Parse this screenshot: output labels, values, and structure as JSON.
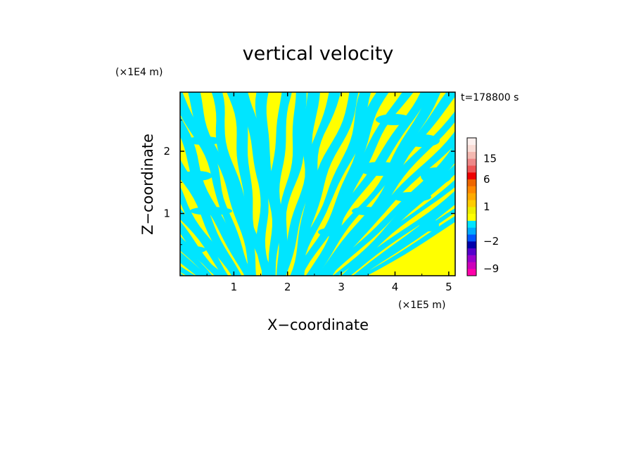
{
  "chart_data": {
    "type": "heatmap",
    "title": "vertical velocity",
    "xlabel": "X−coordinate",
    "ylabel": "Z−coordinate",
    "x_unit": "(×1E5 m)",
    "y_unit": "(×1E4 m)",
    "time_label": "t=178800 s",
    "x_range": [
      0,
      5.12
    ],
    "y_range": [
      0,
      2.95
    ],
    "x_ticks": [
      {
        "value": 1,
        "label": "1"
      },
      {
        "value": 2,
        "label": "2"
      },
      {
        "value": 3,
        "label": "3"
      },
      {
        "value": 4,
        "label": "4"
      },
      {
        "value": 5,
        "label": "5"
      }
    ],
    "y_ticks": [
      {
        "value": 1,
        "label": "1"
      },
      {
        "value": 2,
        "label": "2"
      }
    ],
    "field_colors": {
      "positive": "#ffff00",
      "negative": "#00e5ff"
    },
    "colorbar": {
      "levels": [
        {
          "from": -12,
          "to": -9,
          "color": "#ff00aa"
        },
        {
          "from": -9,
          "to": -6,
          "color": "#cc00bb"
        },
        {
          "from": -6,
          "to": -4,
          "color": "#9900cc"
        },
        {
          "from": -4,
          "to": -3,
          "color": "#5500cc"
        },
        {
          "from": -3,
          "to": -2,
          "color": "#0000aa"
        },
        {
          "from": -2,
          "to": -1.5,
          "color": "#0055ff"
        },
        {
          "from": -1.5,
          "to": -1,
          "color": "#00aaff"
        },
        {
          "from": -1,
          "to": 0,
          "color": "#00e5ff"
        },
        {
          "from": 0,
          "to": 0.5,
          "color": "#ffff00"
        },
        {
          "from": 0.5,
          "to": 1,
          "color": "#eeee00"
        },
        {
          "from": 1,
          "to": 1.5,
          "color": "#ffcc00"
        },
        {
          "from": 1.5,
          "to": 2,
          "color": "#ffaa00"
        },
        {
          "from": 2,
          "to": 3,
          "color": "#ff8800"
        },
        {
          "from": 3,
          "to": 6,
          "color": "#ee6600"
        },
        {
          "from": 6,
          "to": 9,
          "color": "#ee0000"
        },
        {
          "from": 9,
          "to": 12,
          "color": "#ee5555"
        },
        {
          "from": 12,
          "to": 15,
          "color": "#ee8888"
        },
        {
          "from": 15,
          "to": 18,
          "color": "#f4b8b0"
        },
        {
          "from": 18,
          "to": 21,
          "color": "#f9dcd6"
        },
        {
          "from": 21,
          "to": 24,
          "color": "#fdf0ee"
        }
      ],
      "labels": [
        {
          "value": 15,
          "label": "15"
        },
        {
          "value": 6,
          "label": "6"
        },
        {
          "value": 1,
          "label": "1"
        },
        {
          "value": -2,
          "label": "−2"
        },
        {
          "value": -9,
          "label": "−9"
        }
      ]
    }
  }
}
